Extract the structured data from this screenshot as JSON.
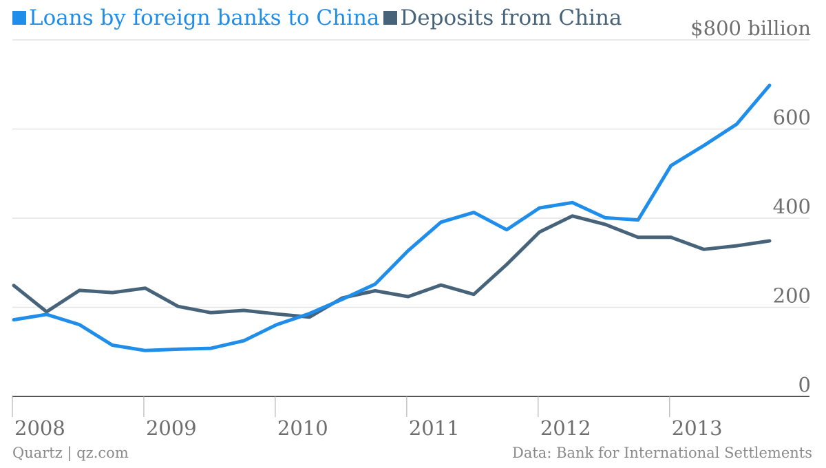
{
  "chart_data": {
    "type": "line",
    "x": [
      "2008 Q1",
      "2008 Q2",
      "2008 Q3",
      "2008 Q4",
      "2009 Q1",
      "2009 Q2",
      "2009 Q3",
      "2009 Q4",
      "2010 Q1",
      "2010 Q2",
      "2010 Q3",
      "2010 Q4",
      "2011 Q1",
      "2011 Q2",
      "2011 Q3",
      "2011 Q4",
      "2012 Q1",
      "2012 Q2",
      "2012 Q3",
      "2012 Q4",
      "2013 Q1",
      "2013 Q2",
      "2013 Q3",
      "2013 Q4"
    ],
    "x_tick_labels": [
      "2008",
      "2009",
      "2010",
      "2011",
      "2012",
      "2013"
    ],
    "series": [
      {
        "name": "Loans by foreign banks to China",
        "color": "#1f8dea",
        "values": [
          172,
          184,
          161,
          115,
          103,
          106,
          108,
          125,
          161,
          186,
          218,
          252,
          327,
          391,
          413,
          374,
          423,
          435,
          401,
          396,
          518,
          563,
          611,
          698
        ]
      },
      {
        "name": "Deposits from China",
        "color": "#47637a",
        "values": [
          249,
          190,
          238,
          233,
          243,
          202,
          188,
          193,
          185,
          178,
          221,
          237,
          224,
          250,
          229,
          296,
          369,
          405,
          386,
          357,
          357,
          330,
          338,
          349
        ]
      }
    ],
    "y_ticks": [
      0,
      200,
      400,
      600,
      800
    ],
    "y_tick_labels": [
      "0",
      "200",
      "400",
      "600",
      "$800 billion"
    ],
    "ylim": [
      0,
      800
    ],
    "grid": true,
    "legend_position": "top-left",
    "source": "Data: Bank for International Settlements",
    "credit": "Quartz | qz.com"
  }
}
